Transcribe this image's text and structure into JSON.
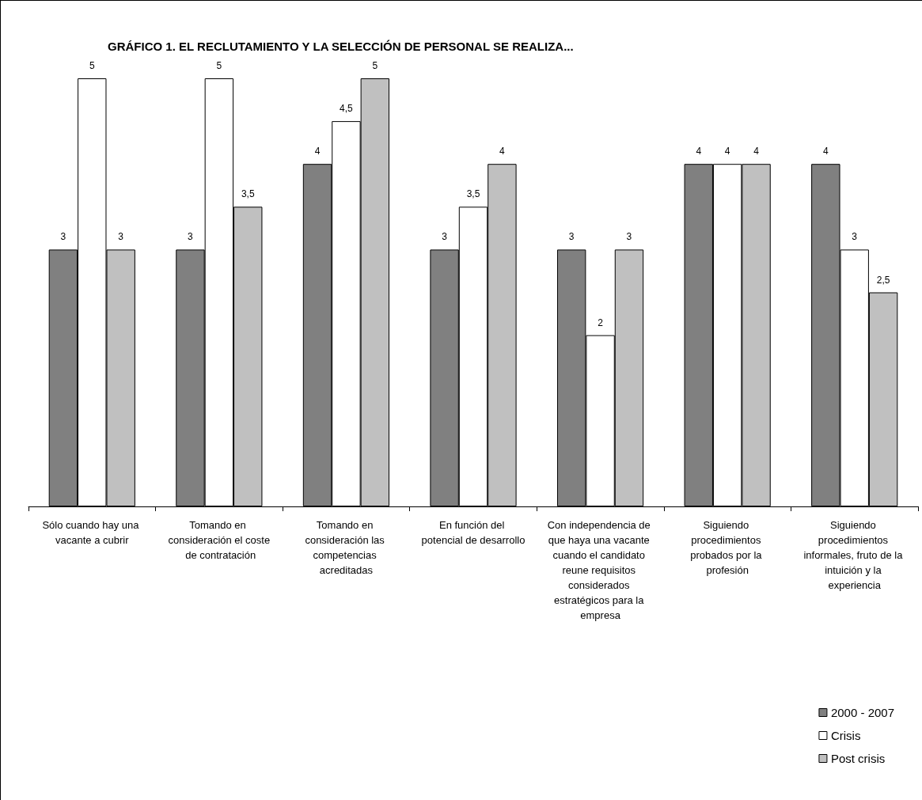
{
  "chart_data": {
    "type": "bar",
    "title": "GRÁFICO 1. EL RECLUTAMIENTO Y LA SELECCIÓN DE PERSONAL SE REALIZA...",
    "categories": [
      "Sólo cuando hay una vacante a cubrir",
      "Tomando en consideración el coste de contratación",
      "Tomando en consideración las competencias acreditadas",
      "En función del potencial de desarrollo",
      "Con independencia de que haya una vacante cuando el candidato reune requisitos considerados estratégicos para la empresa",
      "Siguiendo procedimientos probados por la profesión",
      "Siguiendo procedimientos informales, fruto de la intuición y la experiencia"
    ],
    "series": [
      {
        "name": "2000 - 2007",
        "color": "#808080",
        "values": [
          3,
          3,
          4,
          3,
          3,
          4,
          4
        ],
        "value_labels": [
          "3",
          "3",
          "4",
          "3",
          "3",
          "4",
          "4"
        ]
      },
      {
        "name": "Crisis",
        "color": "#ffffff",
        "values": [
          5,
          5,
          4.5,
          3.5,
          2,
          4,
          3
        ],
        "value_labels": [
          "5",
          "5",
          "4,5",
          "3,5",
          "2",
          "4",
          "3"
        ]
      },
      {
        "name": "Post crisis",
        "color": "#c0c0c0",
        "values": [
          3,
          3.5,
          5,
          4,
          3,
          4,
          2.5
        ],
        "value_labels": [
          "3",
          "3,5",
          "5",
          "4",
          "3",
          "4",
          "2,5"
        ]
      }
    ],
    "legend": "bottom right",
    "grid": false
  }
}
